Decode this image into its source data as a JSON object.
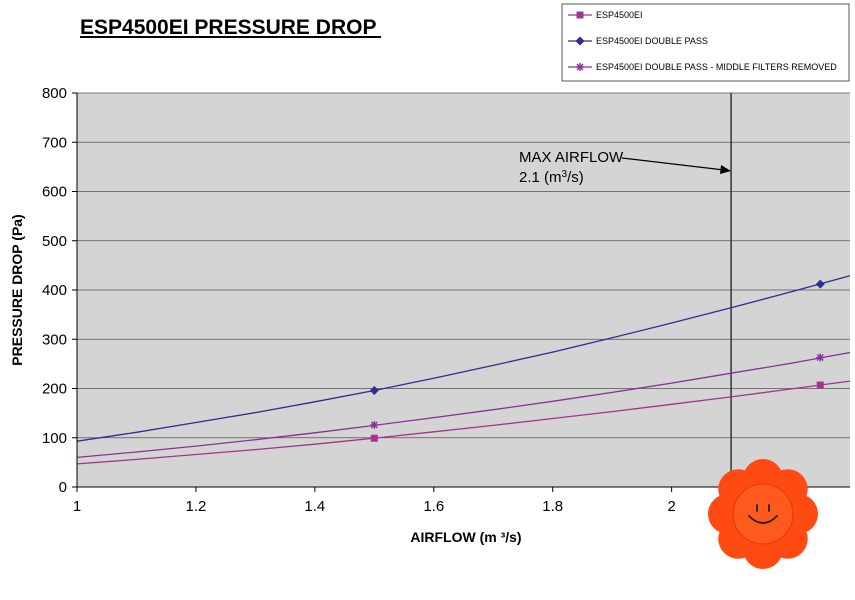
{
  "chart_data": {
    "type": "line",
    "title": "ESP4500EI PRESSURE DROP",
    "xlabel": "AIRFLOW (m ³/s)",
    "ylabel": "PRESSURE DROP (Pa)",
    "xlim": [
      1,
      2.3
    ],
    "ylim": [
      0,
      800
    ],
    "xticks": [
      1,
      1.2,
      1.4,
      1.6,
      1.8,
      2
    ],
    "xtick_labels": [
      "1",
      "1.2",
      "1.4",
      "1.6",
      "1.8",
      "2"
    ],
    "yticks": [
      0,
      100,
      200,
      300,
      400,
      500,
      600,
      700,
      800
    ],
    "grid": "horizontal",
    "legend_position": "top-right",
    "background": "#d4d4d4",
    "series": [
      {
        "name": "ESP4500EI",
        "color": "#a0368c",
        "marker": "square",
        "curve_x": [
          1.0,
          1.1,
          1.2,
          1.3,
          1.4,
          1.5,
          1.6,
          1.7,
          1.8,
          1.9,
          2.0,
          2.1,
          2.2,
          2.3
        ],
        "curve_y": [
          47,
          56,
          66,
          76,
          87,
          99,
          112,
          125,
          139,
          153,
          168,
          183,
          199,
          215
        ],
        "points_x": [
          1.5,
          2.25
        ],
        "points_y": [
          99,
          207
        ]
      },
      {
        "name": "ESP4500EI DOUBLE PASS",
        "color": "#2e2e8c",
        "marker": "diamond",
        "curve_x": [
          1.0,
          1.1,
          1.2,
          1.3,
          1.4,
          1.5,
          1.6,
          1.7,
          1.8,
          1.9,
          2.0,
          2.1,
          2.2,
          2.3
        ],
        "curve_y": [
          93,
          111,
          131,
          151,
          173,
          196,
          221,
          247,
          274,
          303,
          333,
          364,
          396,
          429
        ],
        "points_x": [
          1.5,
          2.25
        ],
        "points_y": [
          196,
          412
        ]
      },
      {
        "name": "ESP4500EI DOUBLE PASS  - MIDDLE FILTERS REMOVED",
        "color": "#8c2e9c",
        "marker": "star",
        "curve_x": [
          1.0,
          1.1,
          1.2,
          1.3,
          1.4,
          1.5,
          1.6,
          1.7,
          1.8,
          1.9,
          2.0,
          2.1,
          2.2,
          2.3
        ],
        "curve_y": [
          60,
          71,
          83,
          96,
          110,
          125,
          141,
          157,
          174,
          192,
          211,
          231,
          251,
          273
        ],
        "points_x": [
          1.5,
          2.25
        ],
        "points_y": [
          126,
          263
        ]
      }
    ],
    "vline": {
      "x": 2.1,
      "color": "#333333"
    },
    "annotation": {
      "line1": "MAX AIRFLOW",
      "line2_prefix": "2.1 (m",
      "line2_sup": "3",
      "line2_suffix": "/s)"
    }
  },
  "decoration": {
    "name": "smiley-flower-sticker",
    "petal_color": "#ff4a12",
    "center_color": "#ff5a1e"
  }
}
